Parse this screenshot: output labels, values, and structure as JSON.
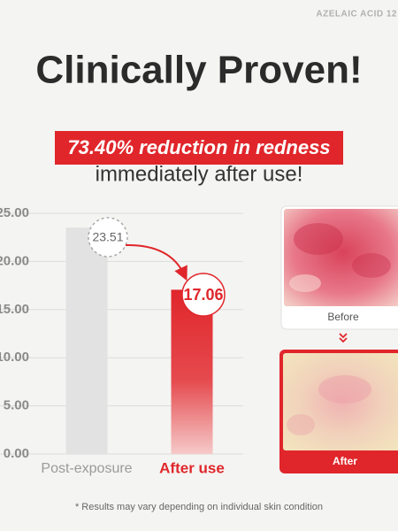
{
  "brand_tag": "AZELAIC ACID 12",
  "headline": "Clinically Proven!",
  "highlight": "73.40% reduction in redness",
  "subheadline": "immediately after use!",
  "chart_data": {
    "type": "bar",
    "categories": [
      "Post-exposure",
      "After use"
    ],
    "values": [
      23.51,
      17.06
    ],
    "colors": [
      "#e2e2e2",
      "#e0262b"
    ],
    "ylim": [
      0,
      25
    ],
    "yticks": [
      {
        "value": 0,
        "label": "0.00"
      },
      {
        "value": 5,
        "label": "5.00"
      },
      {
        "value": 10,
        "label": "10.00"
      },
      {
        "value": 15,
        "label": "15.00"
      },
      {
        "value": 20,
        "label": "20.00"
      },
      {
        "value": 25,
        "label": "25.00"
      }
    ],
    "grid": true
  },
  "images": {
    "before_label": "Before",
    "after_label": "After"
  },
  "footnote": "* Results may vary depending on individual skin condition"
}
